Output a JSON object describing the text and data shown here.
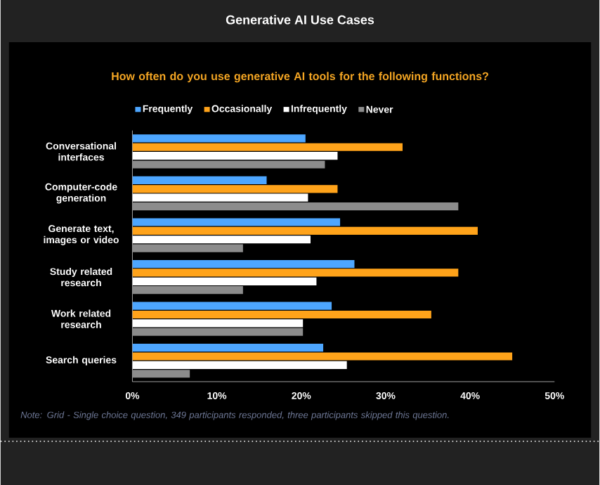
{
  "chart_data": {
    "type": "bar",
    "orientation": "horizontal",
    "title": "Generative AI Use Cases",
    "subtitle": "How often do you use generative AI tools for the following functions?",
    "categories": [
      "Conversational interfaces",
      "Computer-code generation",
      "Generate text, images or video",
      "Study related research",
      "Work related research",
      "Search queries"
    ],
    "series": [
      {
        "name": "Frequently",
        "color": "#4da6ff",
        "values": [
          20.5,
          15.9,
          24.6,
          26.3,
          23.6,
          22.6
        ]
      },
      {
        "name": "Occasionally",
        "color": "#ffa31a",
        "values": [
          32.0,
          24.3,
          40.9,
          38.6,
          35.4,
          45.0
        ]
      },
      {
        "name": "Infrequently",
        "color": "#ffffff",
        "values": [
          24.3,
          20.8,
          21.1,
          21.8,
          20.2,
          25.4
        ]
      },
      {
        "name": "Never",
        "color": "#8c8c8c",
        "values": [
          22.8,
          38.6,
          13.1,
          13.1,
          20.2,
          6.8
        ]
      }
    ],
    "xlim": [
      0,
      50
    ],
    "xticks": [
      {
        "value": 0,
        "label": "0%"
      },
      {
        "value": 10,
        "label": "10%"
      },
      {
        "value": 20,
        "label": "20%"
      },
      {
        "value": 30,
        "label": "30%"
      },
      {
        "value": 40,
        "label": "40%"
      },
      {
        "value": 50,
        "label": "50%"
      }
    ],
    "legend": "top",
    "grid": false,
    "annotations": [
      "Note: Grid - Single choice question, 349 participants responded, three participants skipped this question."
    ]
  }
}
